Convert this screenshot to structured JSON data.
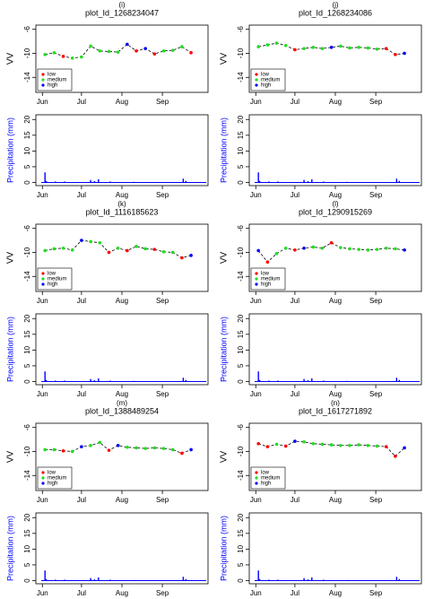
{
  "chart_data": [
    {
      "type": "line",
      "subtitle": "(i)",
      "title": "plot_Id_1268234047",
      "ylabel": "VV",
      "xlim": [
        -5,
        127
      ],
      "ylim": [
        -16.5,
        -5.3
      ],
      "yticks": [
        -6,
        -10,
        -14
      ],
      "xticks": [
        {
          "value": 0,
          "label": "Jun"
        },
        {
          "value": 30,
          "label": "Jul"
        },
        {
          "value": 61,
          "label": "Aug"
        },
        {
          "value": 92,
          "label": "Sep"
        }
      ],
      "legend": "bottom left",
      "series": [
        {
          "name": "low",
          "color": "#ff0000",
          "x": [
            16,
            72,
            86,
            114
          ],
          "values": [
            -10.5,
            -9.6,
            -10.1,
            -9.9
          ]
        },
        {
          "name": "medium",
          "color": "#22dd22",
          "x": [
            2,
            9,
            23,
            30,
            37,
            44,
            51,
            58,
            93,
            100,
            107
          ],
          "values": [
            -10.2,
            -9.9,
            -10.8,
            -10.6,
            -8.8,
            -9.6,
            -9.7,
            -9.8,
            -9.6,
            -9.5,
            -8.9
          ]
        },
        {
          "name": "high",
          "color": "#0000ff",
          "x": [
            65,
            79
          ],
          "values": [
            -8.5,
            -9.2
          ]
        }
      ]
    },
    {
      "type": "bar",
      "ylabel": "Precipitation (mm)",
      "color": "#0000ff",
      "xlim": [
        -5,
        127
      ],
      "ylim": [
        -1,
        21.5
      ],
      "yticks": [
        0,
        5,
        10,
        15,
        20
      ],
      "xticks": [
        {
          "value": 0,
          "label": "Jun"
        },
        {
          "value": 30,
          "label": "Jul"
        },
        {
          "value": 61,
          "label": "Aug"
        },
        {
          "value": 92,
          "label": "Sep"
        }
      ],
      "x": [
        2,
        3,
        10,
        17,
        37,
        40,
        43,
        52,
        70,
        108,
        110
      ],
      "values": [
        3.2,
        0.5,
        0.3,
        0.3,
        0.8,
        0.4,
        1.0,
        0.3,
        0.2,
        1.2,
        0.5
      ]
    },
    {
      "type": "line",
      "subtitle": "(j)",
      "title": "plot_Id_1268234086",
      "ylabel": "VV",
      "xlim": [
        -5,
        127
      ],
      "ylim": [
        -16.5,
        -5.3
      ],
      "yticks": [
        -6,
        -10,
        -14
      ],
      "xticks": [
        {
          "value": 0,
          "label": "Jun"
        },
        {
          "value": 30,
          "label": "Jul"
        },
        {
          "value": 61,
          "label": "Aug"
        },
        {
          "value": 92,
          "label": "Sep"
        }
      ],
      "legend": "bottom left",
      "series": [
        {
          "name": "low",
          "color": "#ff0000",
          "x": [
            30,
            100,
            107
          ],
          "values": [
            -9.4,
            -9.2,
            -10.2
          ]
        },
        {
          "name": "medium",
          "color": "#22dd22",
          "x": [
            2,
            9,
            16,
            23,
            37,
            44,
            51,
            65,
            72,
            79,
            86,
            93
          ],
          "values": [
            -8.9,
            -8.6,
            -8.3,
            -8.7,
            -9.2,
            -9.0,
            -9.2,
            -8.8,
            -9.1,
            -9.0,
            -9.1,
            -9.3
          ]
        },
        {
          "name": "high",
          "color": "#0000ff",
          "x": [
            58,
            114
          ],
          "values": [
            -9.0,
            -10.0
          ]
        }
      ]
    },
    {
      "type": "bar",
      "ylabel": "Precipitation (mm)",
      "color": "#0000ff",
      "xlim": [
        -5,
        127
      ],
      "ylim": [
        -1,
        21.5
      ],
      "yticks": [
        0,
        5,
        10,
        15,
        20
      ],
      "xticks": [
        {
          "value": 0,
          "label": "Jun"
        },
        {
          "value": 30,
          "label": "Jul"
        },
        {
          "value": 61,
          "label": "Aug"
        },
        {
          "value": 92,
          "label": "Sep"
        }
      ],
      "x": [
        2,
        3,
        10,
        17,
        37,
        40,
        43,
        52,
        70,
        108,
        110
      ],
      "values": [
        3.2,
        0.5,
        0.3,
        0.3,
        0.8,
        0.4,
        1.0,
        0.3,
        0.2,
        1.2,
        0.5
      ]
    },
    {
      "type": "line",
      "subtitle": "(k)",
      "title": "plot_Id_1116185623",
      "ylabel": "VV",
      "xlim": [
        -5,
        127
      ],
      "ylim": [
        -16.5,
        -5.3
      ],
      "yticks": [
        -6,
        -10,
        -14
      ],
      "xticks": [
        {
          "value": 0,
          "label": "Jun"
        },
        {
          "value": 30,
          "label": "Jul"
        },
        {
          "value": 61,
          "label": "Aug"
        },
        {
          "value": 92,
          "label": "Sep"
        }
      ],
      "legend": "bottom left",
      "series": [
        {
          "name": "low",
          "color": "#ff0000",
          "x": [
            51,
            65,
            86,
            107
          ],
          "values": [
            -10.0,
            -9.7,
            -9.5,
            -10.9
          ]
        },
        {
          "name": "medium",
          "color": "#22dd22",
          "x": [
            2,
            9,
            16,
            23,
            37,
            44,
            58,
            72,
            79,
            93,
            100
          ],
          "values": [
            -9.7,
            -9.4,
            -9.3,
            -9.6,
            -8.2,
            -8.4,
            -9.3,
            -9.0,
            -9.4,
            -9.9,
            -10.0
          ]
        },
        {
          "name": "high",
          "color": "#0000ff",
          "x": [
            30,
            114
          ],
          "values": [
            -8.0,
            -10.5
          ]
        }
      ]
    },
    {
      "type": "bar",
      "ylabel": "Precipitation (mm)",
      "color": "#0000ff",
      "xlim": [
        -5,
        127
      ],
      "ylim": [
        -1,
        21.5
      ],
      "yticks": [
        0,
        5,
        10,
        15,
        20
      ],
      "xticks": [
        {
          "value": 0,
          "label": "Jun"
        },
        {
          "value": 30,
          "label": "Jul"
        },
        {
          "value": 61,
          "label": "Aug"
        },
        {
          "value": 92,
          "label": "Sep"
        }
      ],
      "x": [
        2,
        3,
        10,
        17,
        37,
        40,
        43,
        52,
        70,
        108,
        110
      ],
      "values": [
        3.2,
        0.5,
        0.3,
        0.3,
        0.8,
        0.4,
        1.0,
        0.3,
        0.2,
        1.2,
        0.5
      ]
    },
    {
      "type": "line",
      "subtitle": "(l)",
      "title": "plot_Id_1290915269",
      "ylabel": "VV",
      "xlim": [
        -5,
        127
      ],
      "ylim": [
        -16.5,
        -5.3
      ],
      "yticks": [
        -6,
        -10,
        -14
      ],
      "xticks": [
        {
          "value": 0,
          "label": "Jun"
        },
        {
          "value": 30,
          "label": "Jul"
        },
        {
          "value": 61,
          "label": "Aug"
        },
        {
          "value": 92,
          "label": "Sep"
        }
      ],
      "legend": "bottom left",
      "series": [
        {
          "name": "low",
          "color": "#ff0000",
          "x": [
            9,
            30,
            58
          ],
          "values": [
            -11.6,
            -9.6,
            -8.4
          ]
        },
        {
          "name": "medium",
          "color": "#22dd22",
          "x": [
            16,
            23,
            44,
            51,
            65,
            72,
            79,
            86,
            93,
            100,
            107
          ],
          "values": [
            -10.2,
            -9.3,
            -9.1,
            -9.3,
            -9.2,
            -9.4,
            -9.5,
            -9.6,
            -9.5,
            -9.3,
            -9.4
          ]
        },
        {
          "name": "high",
          "color": "#0000ff",
          "x": [
            2,
            37,
            114
          ],
          "values": [
            -9.7,
            -9.3,
            -9.6
          ]
        }
      ]
    },
    {
      "type": "bar",
      "ylabel": "Precipitation (mm)",
      "color": "#0000ff",
      "xlim": [
        -5,
        127
      ],
      "ylim": [
        -1,
        21.5
      ],
      "yticks": [
        0,
        5,
        10,
        15,
        20
      ],
      "xticks": [
        {
          "value": 0,
          "label": "Jun"
        },
        {
          "value": 30,
          "label": "Jul"
        },
        {
          "value": 61,
          "label": "Aug"
        },
        {
          "value": 92,
          "label": "Sep"
        }
      ],
      "x": [
        2,
        3,
        10,
        17,
        37,
        40,
        43,
        52,
        70,
        108,
        110
      ],
      "values": [
        3.2,
        0.5,
        0.3,
        0.3,
        0.8,
        0.4,
        1.0,
        0.3,
        0.2,
        1.2,
        0.5
      ]
    },
    {
      "type": "line",
      "subtitle": "(m)",
      "title": "plot_Id_1388489254",
      "ylabel": "VV",
      "xlim": [
        -5,
        127
      ],
      "ylim": [
        -16.5,
        -5.3
      ],
      "yticks": [
        -6,
        -10,
        -14
      ],
      "xticks": [
        {
          "value": 0,
          "label": "Jun"
        },
        {
          "value": 30,
          "label": "Jul"
        },
        {
          "value": 61,
          "label": "Aug"
        },
        {
          "value": 92,
          "label": "Sep"
        }
      ],
      "legend": "bottom left",
      "series": [
        {
          "name": "low",
          "color": "#ff0000",
          "x": [
            16,
            51,
            107
          ],
          "values": [
            -9.9,
            -9.8,
            -10.3
          ]
        },
        {
          "name": "medium",
          "color": "#22dd22",
          "x": [
            2,
            9,
            23,
            37,
            44,
            65,
            72,
            79,
            86,
            93,
            100
          ],
          "values": [
            -9.7,
            -9.7,
            -10.0,
            -9.0,
            -8.5,
            -9.3,
            -9.4,
            -9.5,
            -9.4,
            -9.5,
            -9.7
          ]
        },
        {
          "name": "high",
          "color": "#0000ff",
          "x": [
            30,
            58,
            114
          ],
          "values": [
            -9.2,
            -9.0,
            -9.7
          ]
        }
      ]
    },
    {
      "type": "bar",
      "ylabel": "Precipitation (mm)",
      "color": "#0000ff",
      "xlim": [
        -5,
        127
      ],
      "ylim": [
        -1,
        21.5
      ],
      "yticks": [
        0,
        5,
        10,
        15,
        20
      ],
      "xticks": [
        {
          "value": 0,
          "label": "Jun"
        },
        {
          "value": 30,
          "label": "Jul"
        },
        {
          "value": 61,
          "label": "Aug"
        },
        {
          "value": 92,
          "label": "Sep"
        }
      ],
      "x": [
        2,
        3,
        10,
        17,
        37,
        40,
        43,
        52,
        70,
        108,
        110
      ],
      "values": [
        3.2,
        0.5,
        0.3,
        0.3,
        0.8,
        0.4,
        1.0,
        0.3,
        0.2,
        1.2,
        0.5
      ]
    },
    {
      "type": "line",
      "subtitle": "(n)",
      "title": "plot_Id_1617271892",
      "ylabel": "VV",
      "xlim": [
        -5,
        127
      ],
      "ylim": [
        -16.5,
        -5.3
      ],
      "yticks": [
        -6,
        -10,
        -14
      ],
      "xticks": [
        {
          "value": 0,
          "label": "Jun"
        },
        {
          "value": 30,
          "label": "Jul"
        },
        {
          "value": 61,
          "label": "Aug"
        },
        {
          "value": 92,
          "label": "Sep"
        }
      ],
      "legend": "bottom left",
      "series": [
        {
          "name": "low",
          "color": "#ff0000",
          "x": [
            2,
            9,
            23,
            100,
            107
          ],
          "values": [
            -8.7,
            -9.2,
            -9.1,
            -9.2,
            -10.8
          ]
        },
        {
          "name": "medium",
          "color": "#22dd22",
          "x": [
            16,
            37,
            44,
            51,
            58,
            65,
            72,
            79,
            86,
            93
          ],
          "values": [
            -8.8,
            -8.4,
            -8.7,
            -8.8,
            -8.9,
            -9.0,
            -9.0,
            -8.9,
            -9.0,
            -9.1
          ]
        },
        {
          "name": "high",
          "color": "#0000ff",
          "x": [
            30,
            114
          ],
          "values": [
            -8.3,
            -9.4
          ]
        }
      ]
    },
    {
      "type": "bar",
      "ylabel": "Precipitation (mm)",
      "color": "#0000ff",
      "xlim": [
        -5,
        127
      ],
      "ylim": [
        -1,
        21.5
      ],
      "yticks": [
        0,
        5,
        10,
        15,
        20
      ],
      "xticks": [
        {
          "value": 0,
          "label": "Jun"
        },
        {
          "value": 30,
          "label": "Jul"
        },
        {
          "value": 61,
          "label": "Aug"
        },
        {
          "value": 92,
          "label": "Sep"
        }
      ],
      "x": [
        2,
        3,
        10,
        17,
        37,
        40,
        43,
        52,
        70,
        108,
        110
      ],
      "values": [
        3.2,
        0.5,
        0.3,
        0.3,
        0.8,
        0.4,
        1.0,
        0.3,
        0.2,
        1.2,
        0.5
      ]
    }
  ]
}
